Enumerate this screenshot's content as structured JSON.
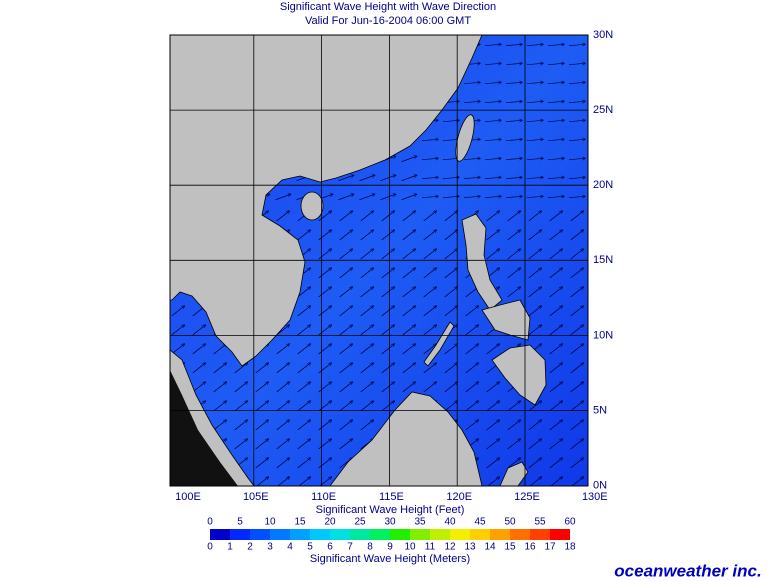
{
  "header": {
    "title": "Significant Wave Height with Wave Direction",
    "subtitle": "Valid For Jun-16-2004 06:00 GMT"
  },
  "map": {
    "lon_labels": [
      "100E",
      "105E",
      "110E",
      "115E",
      "120E",
      "125E",
      "130E"
    ],
    "lat_labels": [
      "30N",
      "25N",
      "20N",
      "15N",
      "10N",
      "5N",
      "0N"
    ]
  },
  "colorbar": {
    "feet_title": "Significant Wave Height (Feet)",
    "feet_labels": [
      0,
      5,
      10,
      15,
      20,
      25,
      30,
      35,
      40,
      45,
      50,
      55,
      60
    ],
    "meters_labels": [
      0,
      1,
      2,
      3,
      4,
      5,
      6,
      7,
      8,
      9,
      10,
      11,
      12,
      13,
      14,
      15,
      16,
      17,
      18
    ],
    "meters_title": "Significant Wave Height (Meters)"
  },
  "logo": "oceanweather inc."
}
